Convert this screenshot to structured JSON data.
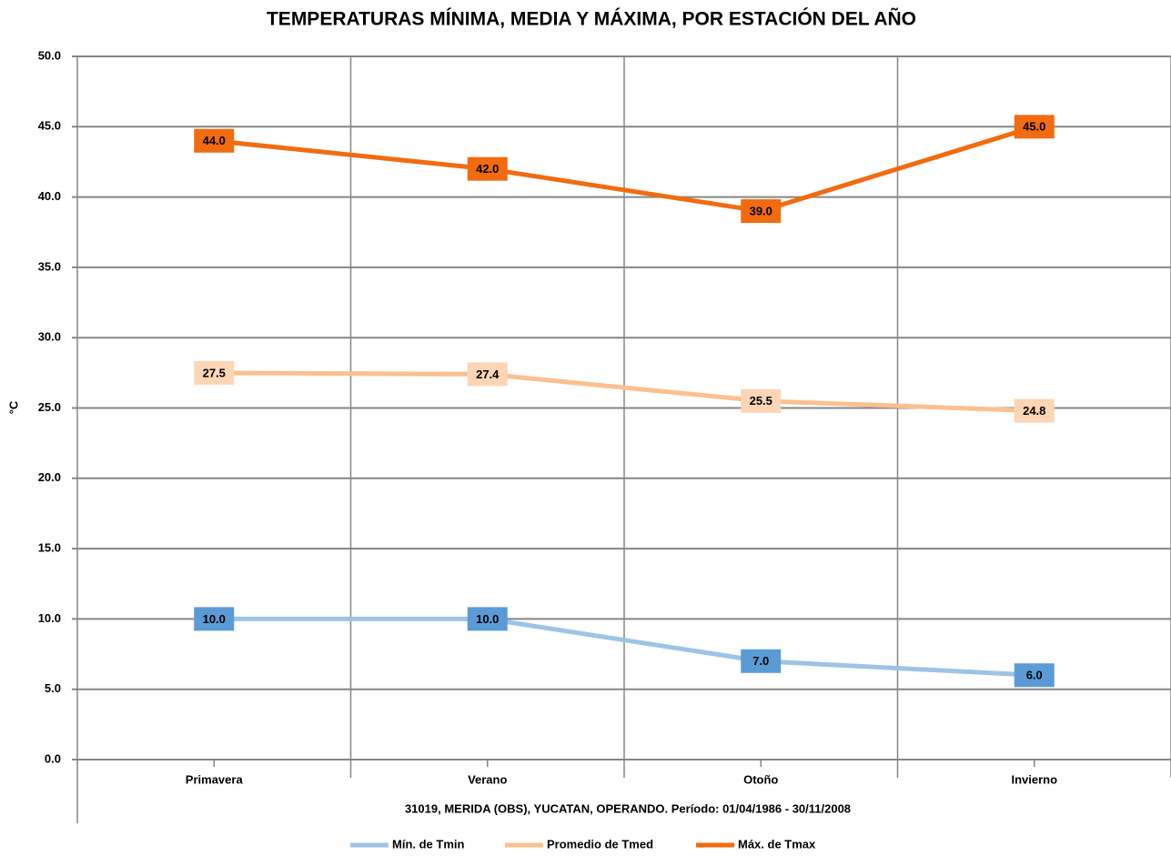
{
  "chart_data": {
    "type": "line",
    "title": "TEMPERATURAS MÍNIMA, MEDIA Y MÁXIMA, POR ESTACIÓN DEL AÑO",
    "subtitle": "31019, MERIDA (OBS), YUCATAN, OPERANDO. Período: 01/04/1986 - 30/11/2008",
    "y_label": "°C",
    "categories": [
      "Primavera",
      "Verano",
      "Otoño",
      "Invierno"
    ],
    "series": [
      {
        "name": "Mín. de Tmin",
        "color": "#9dc3e6",
        "marker_color": "#5b9bd5",
        "values": [
          10,
          10,
          7,
          6
        ],
        "value_labels": [
          "10.0",
          "10.0",
          "7.0",
          "6.0"
        ]
      },
      {
        "name": "Promedio de Tmed",
        "color": "#fac090",
        "marker_color": "#fbd5b5",
        "values": [
          27.5,
          27.4,
          25.5,
          24.8
        ],
        "value_labels": [
          "27.5",
          "27.4",
          "25.5",
          "24.8"
        ]
      },
      {
        "name": "Máx. de Tmax",
        "color": "#f26b0f",
        "marker_color": "#f26b0f",
        "values": [
          44,
          42,
          39,
          45
        ],
        "value_labels": [
          "44.0",
          "42.0",
          "39.0",
          "45.0"
        ]
      }
    ],
    "ylim": [
      0,
      50
    ],
    "yticks": [
      {
        "value": 0,
        "label": "0.0"
      },
      {
        "value": 5,
        "label": "5.0"
      },
      {
        "value": 10,
        "label": "10.0"
      },
      {
        "value": 15,
        "label": "15.0"
      },
      {
        "value": 20,
        "label": "20.0"
      },
      {
        "value": 25,
        "label": "25.0"
      },
      {
        "value": 30,
        "label": "30.0"
      },
      {
        "value": 35,
        "label": "35.0"
      },
      {
        "value": 40,
        "label": "40.0"
      },
      {
        "value": 45,
        "label": "45.0"
      },
      {
        "value": 50,
        "label": "50.0"
      }
    ],
    "grid": true,
    "legend": "bottom"
  }
}
